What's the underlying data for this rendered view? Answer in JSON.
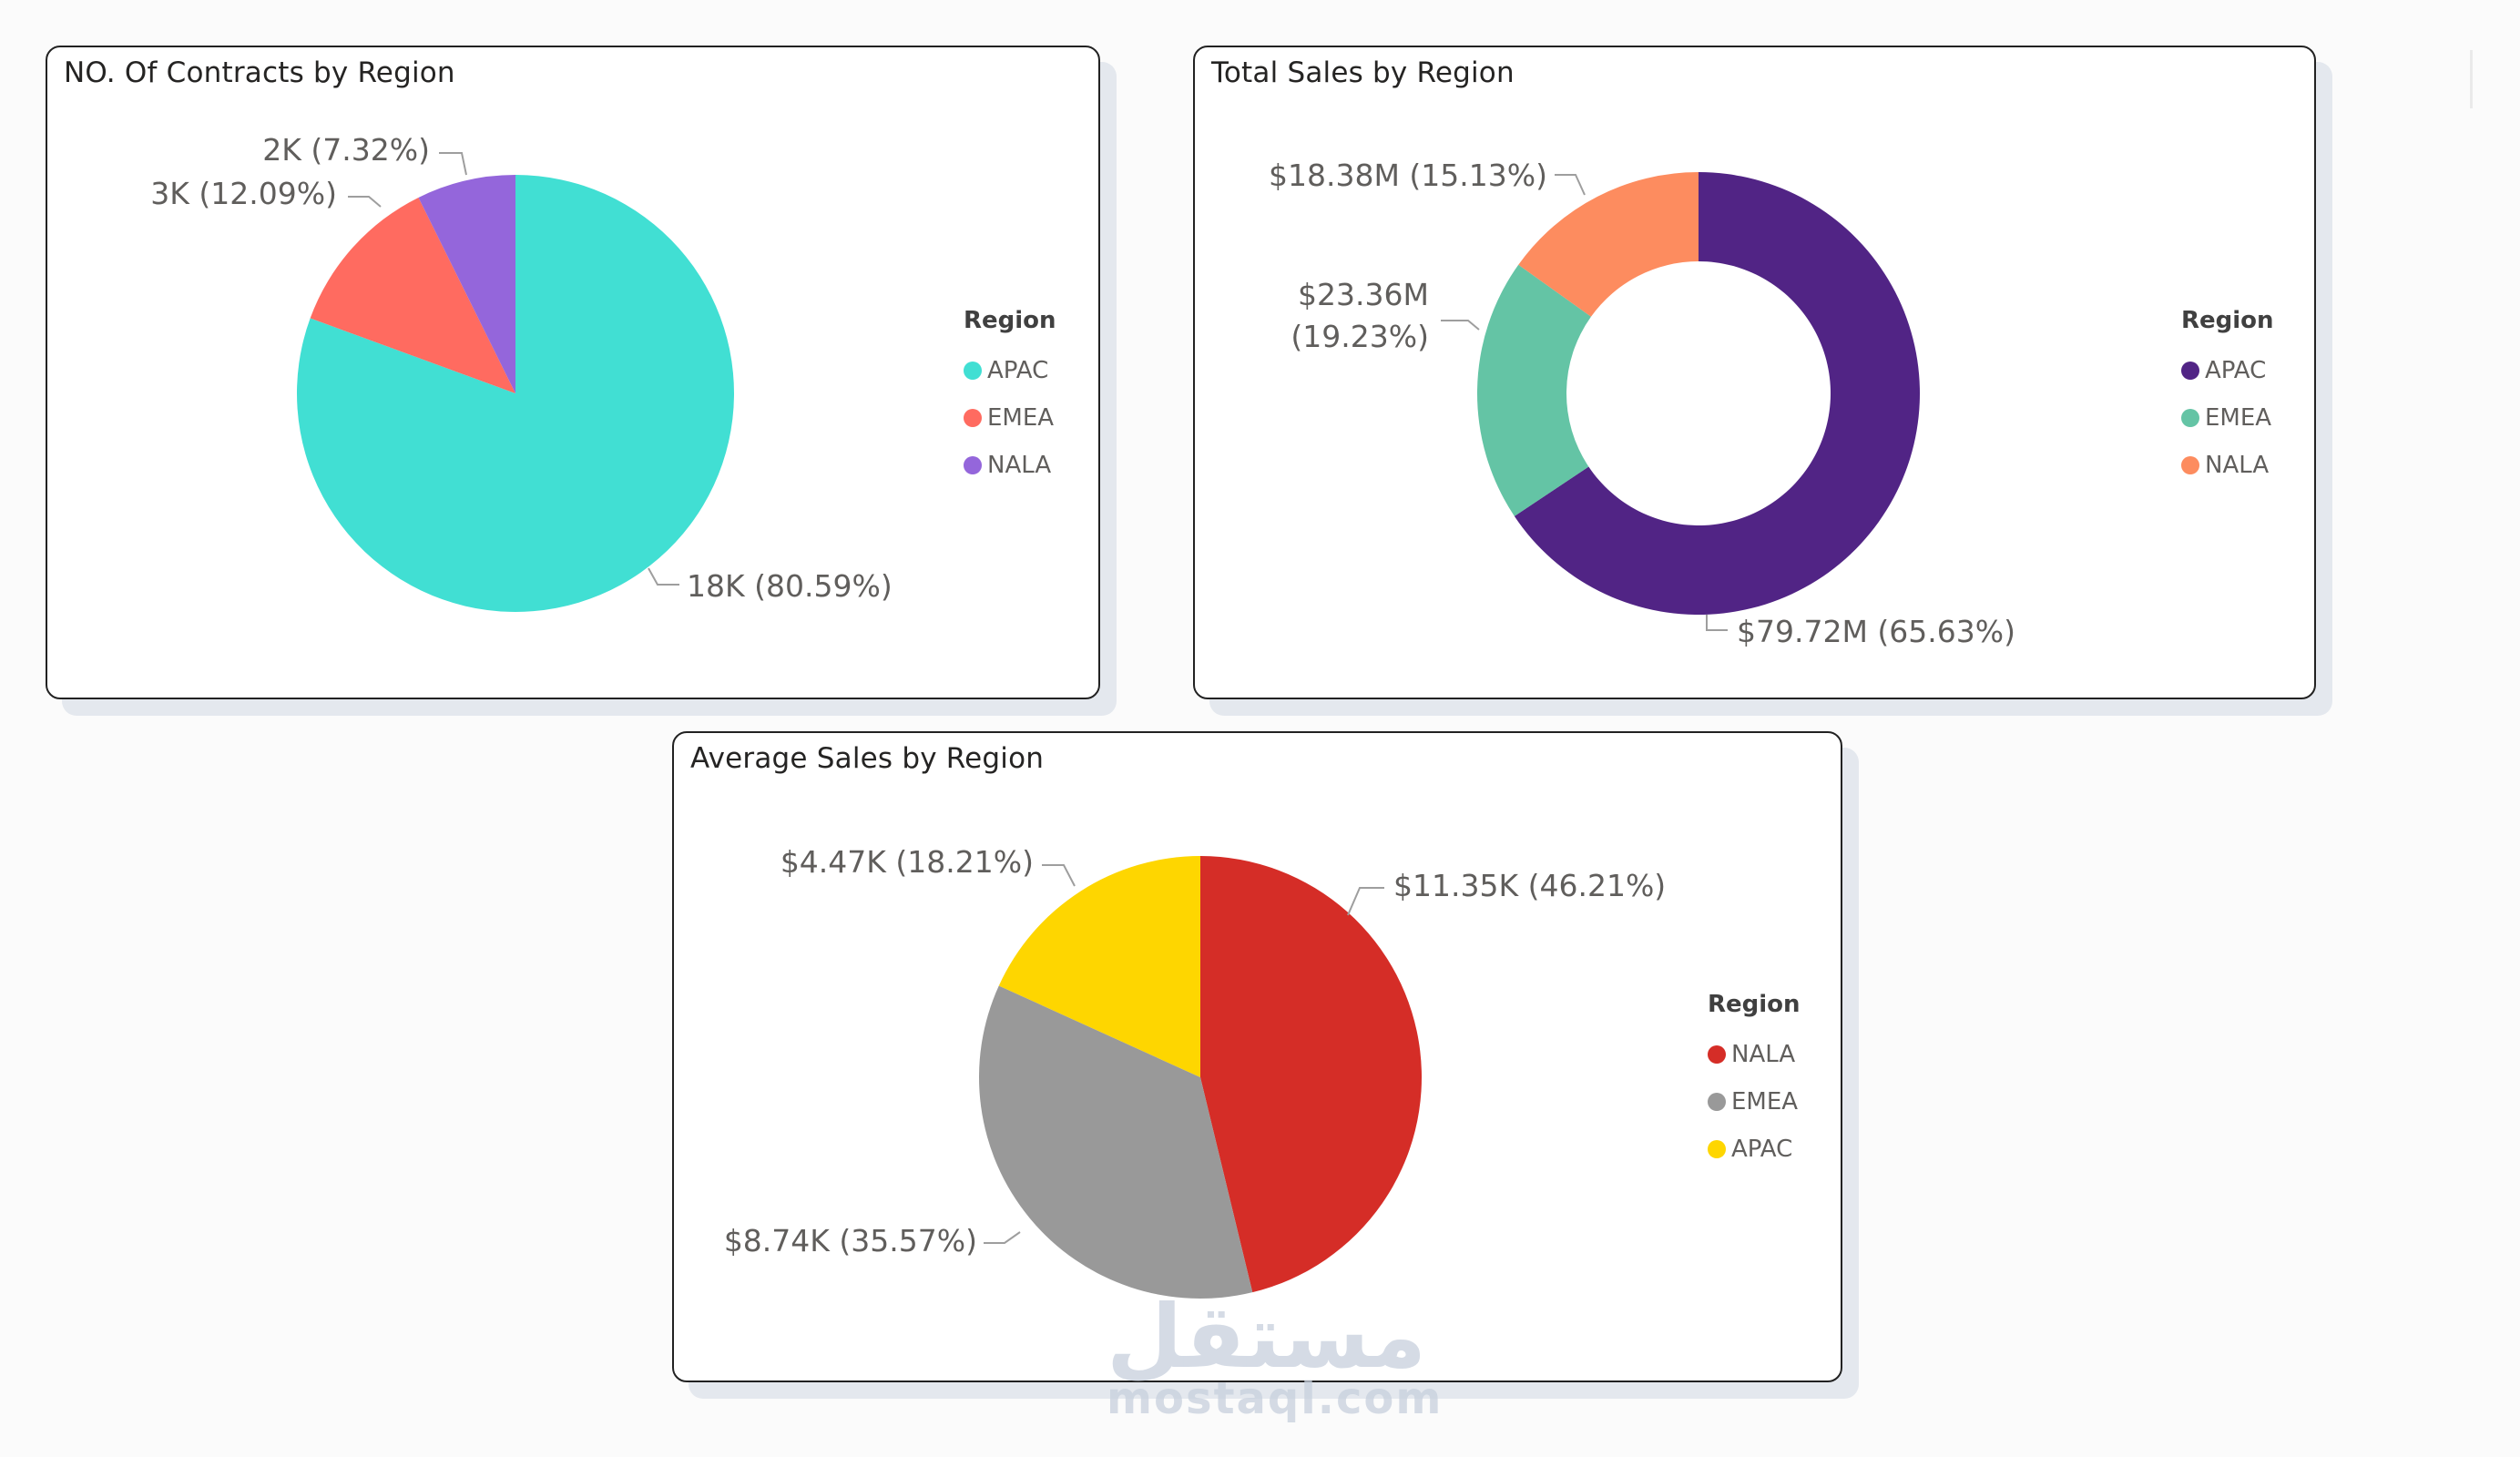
{
  "charts": [
    {
      "id": "contracts",
      "title": "NO. Of Contracts by Region",
      "legend_title": "Region",
      "chart_data": {
        "type": "pie",
        "title": "NO. Of Contracts by Region",
        "legend_title": "Region",
        "categories": [
          "APAC",
          "EMEA",
          "NALA"
        ],
        "values": [
          80.59,
          12.09,
          7.32
        ],
        "labels": [
          "18K (80.59%)",
          "3K (12.09%)",
          "2K (7.32%)"
        ],
        "colors": [
          "#41DFD3",
          "#FF6B60",
          "#9466DB"
        ]
      }
    },
    {
      "id": "total_sales",
      "title": "Total Sales by Region",
      "legend_title": "Region",
      "chart_data": {
        "type": "pie",
        "donut": true,
        "title": "Total Sales by Region",
        "legend_title": "Region",
        "categories": [
          "APAC",
          "EMEA",
          "NALA"
        ],
        "values": [
          65.63,
          19.23,
          15.13
        ],
        "labels": [
          "$79.72M (65.63%)",
          "$23.36M (19.23%)",
          "$18.38M (15.13%)"
        ],
        "colors": [
          "#512485",
          "#64C4A5",
          "#FD8C5F"
        ]
      }
    },
    {
      "id": "avg_sales",
      "title": "Average Sales by Region",
      "legend_title": "Region",
      "chart_data": {
        "type": "pie",
        "title": "Average Sales by Region",
        "legend_title": "Region",
        "categories": [
          "NALA",
          "EMEA",
          "APAC"
        ],
        "values": [
          46.21,
          35.57,
          18.21
        ],
        "labels": [
          "$11.35K (46.21%)",
          "$8.74K (35.57%)",
          "$4.47K (18.21%)"
        ],
        "colors": [
          "#D52D27",
          "#999999",
          "#FED600"
        ]
      }
    }
  ],
  "watermark": {
    "arabic": "مستقل",
    "latin": "mostaql.com"
  }
}
